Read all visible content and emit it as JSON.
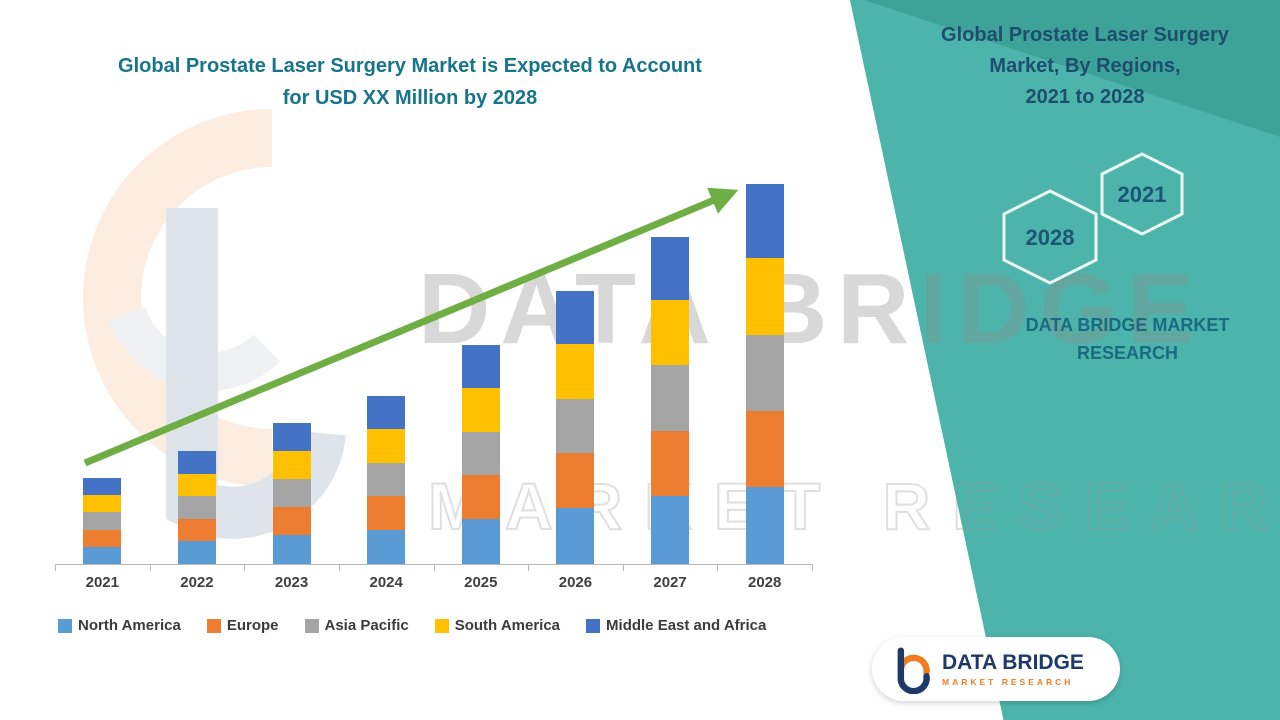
{
  "header": {
    "title_lines": [
      "Global Prostate Laser Surgery Market is Expected to Account",
      "for USD XX Million by 2028"
    ],
    "title_color": "#16758a"
  },
  "panel": {
    "title_lines": [
      "Global Prostate Laser Surgery",
      "Market, By Regions,",
      "2021 to 2028"
    ],
    "title_color": "#1d4e6e",
    "hexagons": {
      "left_year": "2028",
      "right_year": "2021",
      "year_color": "#1d5577"
    },
    "caption_lines": [
      "DATA BRIDGE MARKET",
      "RESEARCH"
    ],
    "caption_color": "#1a6b80",
    "background_color": "#4cb4ab",
    "accent_color": "#3da298"
  },
  "watermark": {
    "line1": "DATA BRIDGE",
    "line2": "MARKET RESEARCH"
  },
  "logo_card": {
    "brand_name": "DATA BRIDGE",
    "brand_subtitle": "MARKET RESEARCH",
    "name_color": "#1d3a6b",
    "subtitle_color": "#ef7d22"
  },
  "chart_data": {
    "type": "bar",
    "stacked": true,
    "title": "Global Prostate Laser Surgery Market is Expected to Account for USD XX Million by 2028",
    "xlabel": "",
    "ylabel": "",
    "units": "USD Million (values indexed, 2028 total = 100)",
    "y_axis_visible": false,
    "grid": false,
    "legend_position": "bottom",
    "trend_arrow": true,
    "trend_arrow_color": "#6fae44",
    "categories": [
      "2021",
      "2022",
      "2023",
      "2024",
      "2025",
      "2026",
      "2027",
      "2028"
    ],
    "series": [
      {
        "name": "North America",
        "color": "#5B9BD5",
        "values": [
          4.8,
          6.2,
          7.8,
          9.3,
          12.0,
          15.0,
          18.0,
          20.5
        ]
      },
      {
        "name": "Europe",
        "color": "#ED7D31",
        "values": [
          4.5,
          5.9,
          7.4,
          8.8,
          11.5,
          14.3,
          17.2,
          20.0
        ]
      },
      {
        "name": "Asia Pacific",
        "color": "#A5A5A5",
        "values": [
          4.5,
          5.9,
          7.4,
          8.8,
          11.5,
          14.3,
          17.2,
          20.0
        ]
      },
      {
        "name": "South America",
        "color": "#FFC000",
        "values": [
          4.5,
          5.9,
          7.4,
          8.8,
          11.5,
          14.3,
          17.2,
          20.0
        ]
      },
      {
        "name": "Middle East and Africa",
        "color": "#4472C4",
        "values": [
          4.5,
          6.0,
          7.3,
          8.7,
          11.2,
          14.0,
          16.5,
          19.5
        ]
      }
    ],
    "totals": [
      22.8,
      29.9,
      37.3,
      44.4,
      57.7,
      71.9,
      86.1,
      100.0
    ]
  }
}
